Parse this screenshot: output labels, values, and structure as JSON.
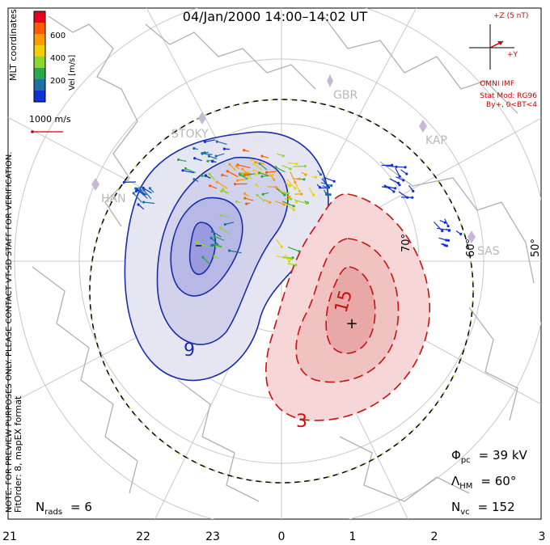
{
  "title": "04/Jan/2000 14:00–14:02 UT",
  "colorbar": {
    "unit_label": "Vel [m/s]",
    "ticks": [
      "600",
      "400",
      "200"
    ],
    "colors": [
      "#e8001c",
      "#ff5a00",
      "#ff9a00",
      "#f0d000",
      "#8cd630",
      "#2aa84a",
      "#1e6ea8",
      "#1030d8"
    ],
    "coords_label": "MLT coordinates"
  },
  "reference_vector": {
    "label": "1000 m/s",
    "color": "#d40000"
  },
  "imf": {
    "z_label": "+Z (5 nT)",
    "y_label": "+Y",
    "source": "OMNI IMF",
    "stat_mod": "Stat Mod: RG96",
    "condition": "By+,  0<BT<4",
    "color": "#cc0000"
  },
  "side_note_line1": "NOTE: FOR PREVIEW PURPOSES ONLY. PLEASE CONTACT VT-SD STAFF FOR VERIFICATION.",
  "side_note_line2": "FitOrder: 8, mapEX format",
  "stations": [
    "GBR",
    "STOKY",
    "KAP",
    "HAN",
    "SAS"
  ],
  "lat_labels": [
    "70°",
    "60°",
    "50°"
  ],
  "contours": {
    "neg_labels": [
      "9",
      "–"
    ],
    "pos_labels": [
      "15",
      "3",
      "+"
    ],
    "neg_color": "#1a2ea8",
    "pos_color": "#cc1010"
  },
  "stats": {
    "phi_pc": {
      "symbol": "Φ",
      "sub": "pc",
      "value": "= 39 kV"
    },
    "lambda_hm": {
      "symbol": "Λ",
      "sub": "HM",
      "value": "= 60°"
    },
    "n_vc": {
      "symbol": "N",
      "sub": "vc",
      "value": "= 152"
    },
    "n_rads": {
      "symbol": "N",
      "sub": "rads",
      "value": "= 6"
    }
  },
  "x_axis_labels": [
    "21",
    "22",
    "23",
    "0",
    "1",
    "2",
    "3"
  ]
}
